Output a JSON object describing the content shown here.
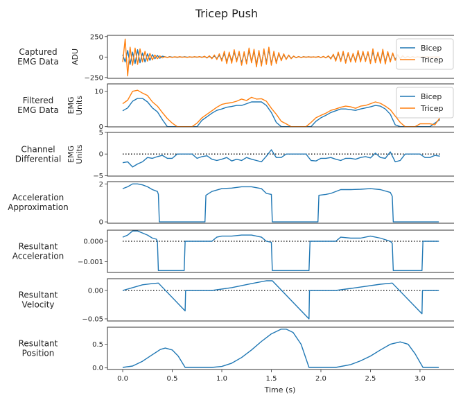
{
  "figure": {
    "title": "Tricep Push",
    "xlabel": "Time (s)",
    "xlim": [
      -0.154,
      3.35
    ],
    "xticks": [
      0.0,
      0.5,
      1.0,
      1.5,
      2.0,
      2.5,
      3.0
    ],
    "xtick_labels": [
      "0.0",
      "0.5",
      "1.0",
      "1.5",
      "2.0",
      "2.5",
      "3.0"
    ]
  },
  "chart_data": [
    {
      "type": "line",
      "row_label": [
        "Captured",
        "EMG Data"
      ],
      "ylabel": [
        "ADU"
      ],
      "ylim": [
        -260,
        265
      ],
      "yticks": [
        250,
        0,
        -250
      ],
      "ytick_labels": [
        "250",
        "0",
        "−250"
      ],
      "zero_line": false,
      "legend": "upper-right",
      "x": [
        0,
        0.025,
        0.05,
        0.075,
        0.1,
        0.125,
        0.15,
        0.175,
        0.2,
        0.225,
        0.25,
        0.275,
        0.3,
        0.325,
        0.35,
        0.375,
        0.4,
        0.425,
        0.45,
        0.475,
        0.5,
        0.525,
        0.55,
        0.575,
        0.6,
        0.625,
        0.65,
        0.675,
        0.7,
        0.725,
        0.75,
        0.775,
        0.8,
        0.825,
        0.85,
        0.875,
        0.9,
        0.925,
        0.95,
        0.975,
        1.0,
        1.025,
        1.05,
        1.075,
        1.1,
        1.125,
        1.15,
        1.175,
        1.2,
        1.225,
        1.25,
        1.275,
        1.3,
        1.325,
        1.35,
        1.375,
        1.4,
        1.425,
        1.45,
        1.475,
        1.5,
        1.525,
        1.55,
        1.575,
        1.6,
        1.625,
        1.65,
        1.675,
        1.7,
        1.725,
        1.75,
        1.775,
        1.8,
        1.825,
        1.85,
        1.875,
        1.9,
        1.925,
        1.95,
        1.975,
        2.0,
        2.025,
        2.05,
        2.075,
        2.1,
        2.125,
        2.15,
        2.175,
        2.2,
        2.225,
        2.25,
        2.275,
        2.3,
        2.325,
        2.35,
        2.375,
        2.4,
        2.425,
        2.45,
        2.475,
        2.5,
        2.525,
        2.55,
        2.575,
        2.6,
        2.625,
        2.65,
        2.675,
        2.7,
        2.725,
        2.75,
        2.775,
        2.8,
        2.825,
        2.85,
        2.875,
        2.9,
        2.925,
        2.95,
        2.975,
        3.0,
        3.025,
        3.05,
        3.075,
        3.1,
        3.125,
        3.15,
        3.175,
        3.2
      ],
      "series": [
        {
          "name": "Bicep",
          "color": "#1f77b4",
          "y": [
            30,
            -60,
            80,
            -90,
            60,
            -80,
            90,
            -70,
            50,
            -60,
            40,
            -40,
            30,
            -20,
            20,
            -15,
            10,
            3,
            -4,
            5,
            -3,
            2,
            -4,
            3,
            -2,
            4,
            -3,
            2,
            -3,
            3,
            -2,
            4,
            -3,
            5,
            -6,
            8,
            -10,
            12,
            -15,
            20,
            -30,
            40,
            -50,
            35,
            -45,
            60,
            -40,
            50,
            -70,
            45,
            -60,
            80,
            -55,
            70,
            -90,
            60,
            -85,
            75,
            -60,
            90,
            -80,
            50,
            -60,
            40,
            -35,
            30,
            -25,
            20,
            -15,
            10,
            -8,
            6,
            -5,
            4,
            -3,
            3,
            -2,
            2,
            -3,
            4,
            -5,
            6,
            -8,
            10,
            -15,
            25,
            -35,
            45,
            -40,
            50,
            -55,
            40,
            -45,
            35,
            -50,
            60,
            -45,
            55,
            -40,
            50,
            -60,
            65,
            -50,
            45,
            -55,
            70,
            -60,
            50,
            -45,
            40,
            -30,
            25,
            -20,
            15,
            -10,
            8,
            -6,
            5,
            -4,
            3,
            -3,
            2,
            -2,
            3,
            -2,
            2,
            -2,
            1,
            0
          ]
        },
        {
          "name": "Tricep",
          "color": "#ff7f0e",
          "y": [
            -60,
            220,
            -230,
            120,
            -100,
            110,
            -90,
            100,
            -60,
            70,
            -50,
            45,
            -35,
            25,
            -20,
            15,
            -10,
            4,
            -5,
            3,
            -4,
            3,
            -2,
            4,
            -3,
            2,
            -4,
            3,
            -2,
            4,
            -3,
            5,
            -5,
            10,
            -12,
            15,
            -20,
            25,
            -30,
            40,
            -50,
            70,
            -80,
            60,
            -75,
            90,
            -60,
            70,
            -100,
            65,
            -85,
            110,
            -70,
            95,
            -120,
            80,
            -110,
            100,
            -90,
            120,
            -100,
            70,
            -80,
            55,
            -45,
            40,
            -30,
            25,
            -20,
            12,
            -8,
            5,
            -6,
            4,
            -3,
            3,
            -2,
            2,
            -3,
            5,
            -6,
            8,
            -10,
            15,
            -25,
            35,
            -50,
            60,
            -55,
            70,
            -75,
            55,
            -60,
            45,
            -65,
            80,
            -60,
            70,
            -55,
            65,
            -80,
            100,
            -70,
            60,
            -75,
            95,
            -85,
            65,
            -60,
            50,
            -40,
            30,
            -25,
            18,
            -12,
            8,
            -7,
            5,
            -4,
            3,
            -3,
            2,
            -2,
            3,
            -2,
            2,
            -2,
            1,
            0
          ]
        }
      ]
    },
    {
      "type": "line",
      "row_label": [
        "Filtered",
        "EMG Data"
      ],
      "ylabel": [
        "EMG",
        "Units"
      ],
      "ylim": [
        -0.06,
        12.1
      ],
      "yticks": [
        10,
        0
      ],
      "ytick_labels": [
        "10",
        "0"
      ],
      "zero_line": false,
      "legend": "upper-right",
      "x": [
        0,
        0.05,
        0.1,
        0.15,
        0.2,
        0.25,
        0.3,
        0.35,
        0.4,
        0.45,
        0.5,
        0.55,
        0.6,
        0.65,
        0.7,
        0.75,
        0.8,
        0.85,
        0.9,
        0.95,
        1.0,
        1.05,
        1.1,
        1.15,
        1.2,
        1.25,
        1.3,
        1.35,
        1.4,
        1.45,
        1.5,
        1.55,
        1.6,
        1.65,
        1.7,
        1.75,
        1.8,
        1.85,
        1.9,
        1.95,
        2.0,
        2.05,
        2.1,
        2.15,
        2.2,
        2.25,
        2.3,
        2.35,
        2.4,
        2.45,
        2.5,
        2.55,
        2.6,
        2.65,
        2.7,
        2.75,
        2.8,
        2.85,
        2.9,
        2.95,
        3.0,
        3.05,
        3.1,
        3.15,
        3.2
      ],
      "series": [
        {
          "name": "Bicep",
          "color": "#1f77b4",
          "y": [
            4.5,
            5.3,
            7.2,
            8.0,
            8.0,
            7.0,
            5.3,
            4.2,
            2.0,
            0,
            0,
            0,
            0,
            0,
            0,
            0,
            1.8,
            2.8,
            3.8,
            4.6,
            5.0,
            5.5,
            5.7,
            6.0,
            6.0,
            6.5,
            7.0,
            7.0,
            7.0,
            6.0,
            4.0,
            1.2,
            0,
            0,
            0,
            0,
            0,
            0,
            0,
            1.5,
            2.5,
            3.2,
            4.0,
            4.5,
            5.0,
            5.0,
            4.8,
            4.6,
            5.0,
            5.3,
            5.6,
            6.0,
            5.8,
            5.0,
            3.5,
            0.5,
            0,
            0,
            0,
            0,
            0,
            0,
            0,
            1.0,
            2.0
          ]
        },
        {
          "name": "Tricep",
          "color": "#ff7f0e",
          "y": [
            6.5,
            7.5,
            10.0,
            10.3,
            9.5,
            8.8,
            7.0,
            5.8,
            4.0,
            2.3,
            1.0,
            0,
            0,
            0,
            0,
            1.0,
            2.5,
            3.5,
            4.5,
            5.5,
            6.3,
            6.6,
            6.8,
            7.2,
            7.8,
            7.4,
            8.3,
            7.8,
            7.9,
            7.2,
            5.2,
            3.5,
            1.5,
            0.8,
            0,
            0,
            0,
            0,
            1.2,
            2.5,
            3.2,
            3.8,
            4.6,
            5.0,
            5.5,
            5.8,
            5.6,
            5.2,
            5.8,
            6.0,
            6.5,
            7.0,
            6.6,
            5.8,
            4.8,
            3.0,
            1.2,
            0,
            0,
            0,
            0.8,
            0.8,
            0.8,
            0.5,
            2.5
          ]
        }
      ]
    },
    {
      "type": "line",
      "row_label": [
        "Channel",
        "Differential"
      ],
      "ylabel": [
        "EMG",
        "Units"
      ],
      "ylim": [
        -5.1,
        5.0
      ],
      "yticks": [
        5,
        0,
        -5
      ],
      "ytick_labels": [
        "5",
        "0",
        "−5"
      ],
      "zero_line": true,
      "x": [
        0,
        0.05,
        0.1,
        0.15,
        0.2,
        0.25,
        0.3,
        0.35,
        0.4,
        0.45,
        0.5,
        0.55,
        0.6,
        0.65,
        0.7,
        0.75,
        0.8,
        0.85,
        0.9,
        0.95,
        1.0,
        1.05,
        1.1,
        1.15,
        1.2,
        1.25,
        1.3,
        1.35,
        1.4,
        1.45,
        1.5,
        1.55,
        1.6,
        1.65,
        1.7,
        1.75,
        1.8,
        1.85,
        1.9,
        1.95,
        2.0,
        2.05,
        2.1,
        2.15,
        2.2,
        2.25,
        2.3,
        2.35,
        2.4,
        2.45,
        2.5,
        2.55,
        2.6,
        2.65,
        2.7,
        2.75,
        2.8,
        2.85,
        2.9,
        2.95,
        3.0,
        3.05,
        3.1,
        3.15,
        3.2
      ],
      "series": [
        {
          "color": "#1f77b4",
          "y": [
            -2.0,
            -1.8,
            -3.0,
            -2.3,
            -1.8,
            -0.8,
            -1.0,
            -0.6,
            -0.3,
            -1.0,
            -1.0,
            0,
            0,
            0,
            0,
            -1.0,
            -0.6,
            -0.4,
            -1.2,
            -1.5,
            -1.2,
            -0.8,
            -1.6,
            -1.2,
            -1.5,
            -0.8,
            -1.2,
            -1.5,
            -1.8,
            -0.5,
            1.0,
            -0.8,
            -0.8,
            0,
            0,
            0,
            0,
            0,
            -1.5,
            -1.6,
            -1.0,
            -1.0,
            -0.8,
            -1.2,
            -1.5,
            -1.0,
            -1.0,
            -1.2,
            -0.8,
            -0.6,
            -0.9,
            0.2,
            -0.8,
            -1.0,
            0.5,
            -1.8,
            -1.5,
            0,
            0,
            0,
            0,
            -0.8,
            -0.8,
            -0.3,
            -0.5
          ]
        }
      ]
    },
    {
      "type": "line",
      "row_label": [
        "Acceleration",
        "Approximation"
      ],
      "ylabel": [],
      "ylim": [
        -0.07,
        2.12
      ],
      "yticks": [
        2,
        0
      ],
      "ytick_labels": [
        "2",
        "0"
      ],
      "zero_line": false,
      "x": [
        0,
        0.05,
        0.1,
        0.15,
        0.2,
        0.25,
        0.3,
        0.35,
        0.36,
        0.37,
        0.83,
        0.84,
        0.9,
        1.0,
        1.1,
        1.2,
        1.3,
        1.4,
        1.45,
        1.5,
        1.51,
        1.97,
        1.98,
        2.05,
        2.1,
        2.2,
        2.3,
        2.4,
        2.5,
        2.6,
        2.7,
        2.72,
        2.73,
        3.19
      ],
      "series": [
        {
          "color": "#1f77b4",
          "y": [
            1.75,
            1.85,
            2.0,
            2.0,
            1.95,
            1.85,
            1.7,
            1.6,
            1.45,
            0,
            0,
            1.4,
            1.6,
            1.75,
            1.78,
            1.85,
            1.85,
            1.75,
            1.5,
            1.45,
            0,
            0,
            1.4,
            1.45,
            1.5,
            1.7,
            1.7,
            1.72,
            1.75,
            1.7,
            1.55,
            1.35,
            0,
            0
          ]
        }
      ]
    },
    {
      "type": "line",
      "row_label": [
        "Resultant",
        "Acceleration"
      ],
      "ylabel": [],
      "ylim": [
        -0.00152,
        0.00054
      ],
      "yticks": [
        0.0,
        -0.001
      ],
      "ytick_labels": [
        "0.000",
        "−0.001"
      ],
      "zero_line": true,
      "x": [
        0,
        0.05,
        0.1,
        0.15,
        0.2,
        0.25,
        0.3,
        0.34,
        0.35,
        0.36,
        0.62,
        0.63,
        0.9,
        0.95,
        1.0,
        1.1,
        1.2,
        1.3,
        1.4,
        1.45,
        1.5,
        1.51,
        1.88,
        1.89,
        2.15,
        2.2,
        2.3,
        2.4,
        2.5,
        2.6,
        2.7,
        2.72,
        2.73,
        3.02,
        3.03,
        3.19
      ],
      "series": [
        {
          "color": "#1f77b4",
          "y": [
            0.0002,
            0.0003,
            0.0005,
            0.0005,
            0.0004,
            0.0003,
            0.00015,
            0.0001,
            0,
            -0.00143,
            -0.00143,
            0,
            0,
            0.0002,
            0.00025,
            0.00025,
            0.0003,
            0.0003,
            0.0002,
            0,
            -5e-05,
            -0.00143,
            -0.00143,
            0,
            0,
            0.0002,
            0.00015,
            0.00015,
            0.00025,
            0.00015,
            0,
            -0.0001,
            -0.00143,
            -0.00143,
            0,
            0
          ]
        }
      ]
    },
    {
      "type": "line",
      "row_label": [
        "Resultant",
        "Velocity"
      ],
      "ylabel": [],
      "ylim": [
        -0.0537,
        0.0207
      ],
      "yticks": [
        0.0,
        -0.05
      ],
      "ytick_labels": [
        "0.00",
        "−0.05"
      ],
      "zero_line": true,
      "x": [
        0,
        0.1,
        0.2,
        0.3,
        0.36,
        0.63,
        0.635,
        0.9,
        1.1,
        1.3,
        1.45,
        1.51,
        1.88,
        1.885,
        2.15,
        2.4,
        2.6,
        2.72,
        3.02,
        3.025,
        3.19
      ],
      "series": [
        {
          "color": "#1f77b4",
          "y": [
            0,
            0.005,
            0.01,
            0.012,
            0.013,
            -0.036,
            0,
            0,
            0.005,
            0.012,
            0.017,
            0.017,
            -0.05,
            0,
            0,
            0.006,
            0.011,
            0.013,
            -0.041,
            0,
            0
          ]
        }
      ]
    },
    {
      "type": "line",
      "row_label": [
        "Resultant",
        "Position"
      ],
      "ylabel": [],
      "ylim": [
        -0.034,
        0.861
      ],
      "yticks": [
        0.5,
        0.0
      ],
      "ytick_labels": [
        "0.5",
        "0.0"
      ],
      "zero_line": false,
      "x": [
        0,
        0.1,
        0.2,
        0.3,
        0.38,
        0.43,
        0.5,
        0.56,
        0.63,
        0.9,
        1.0,
        1.1,
        1.2,
        1.3,
        1.4,
        1.5,
        1.6,
        1.65,
        1.72,
        1.8,
        1.88,
        2.15,
        2.3,
        2.4,
        2.5,
        2.6,
        2.7,
        2.8,
        2.88,
        2.95,
        3.03,
        3.19
      ],
      "series": [
        {
          "color": "#1f77b4",
          "y": [
            0.01,
            0.04,
            0.14,
            0.28,
            0.39,
            0.42,
            0.38,
            0.25,
            0.01,
            0.01,
            0.03,
            0.1,
            0.22,
            0.38,
            0.56,
            0.72,
            0.82,
            0.82,
            0.75,
            0.5,
            0.01,
            0.01,
            0.07,
            0.15,
            0.25,
            0.38,
            0.5,
            0.55,
            0.5,
            0.3,
            0.01,
            0.01
          ]
        }
      ]
    }
  ]
}
